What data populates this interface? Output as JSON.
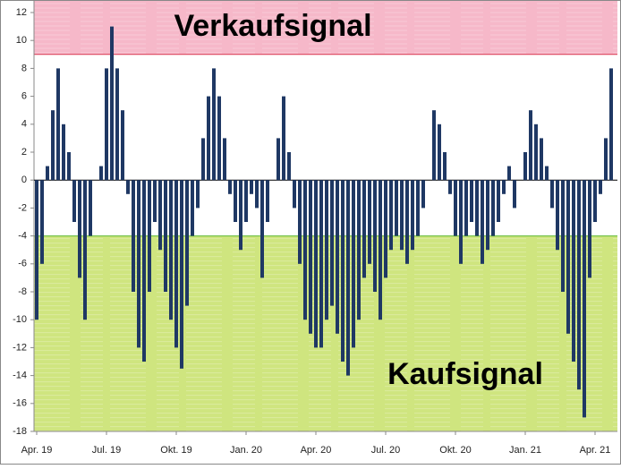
{
  "chart_data": {
    "type": "bar",
    "categories": [
      "Apr. 19",
      null,
      null,
      null,
      null,
      null,
      null,
      null,
      null,
      null,
      null,
      null,
      null,
      "Jul. 19",
      null,
      null,
      null,
      null,
      null,
      null,
      null,
      null,
      null,
      null,
      null,
      null,
      "Okt. 19",
      null,
      null,
      null,
      null,
      null,
      null,
      null,
      null,
      null,
      null,
      null,
      null,
      "Jan. 20",
      null,
      null,
      null,
      null,
      null,
      null,
      null,
      null,
      null,
      null,
      null,
      null,
      "Apr. 20",
      null,
      null,
      null,
      null,
      null,
      null,
      null,
      null,
      null,
      null,
      null,
      null,
      "Jul. 20",
      null,
      null,
      null,
      null,
      null,
      null,
      null,
      null,
      null,
      null,
      null,
      null,
      "Okt. 20",
      null,
      null,
      null,
      null,
      null,
      null,
      null,
      null,
      null,
      null,
      null,
      null,
      "Jan. 21",
      null,
      null,
      null,
      null,
      null,
      null,
      null,
      null,
      null,
      null,
      null,
      null,
      "Apr. 21",
      null,
      null,
      null
    ],
    "values": [
      -10,
      -6,
      1,
      5,
      8,
      4,
      2,
      -3,
      -7,
      -10,
      -4,
      0,
      1,
      8,
      11,
      8,
      5,
      -1,
      -8,
      -12,
      -13,
      -8,
      -3,
      -5,
      -8,
      -10,
      -12,
      -13.5,
      -9,
      -4,
      -2,
      3,
      6,
      8,
      6,
      3,
      -1,
      -3,
      -5,
      -3,
      -1,
      -2,
      -7,
      -3,
      0,
      3,
      6,
      2,
      -2,
      -6,
      -10,
      -11,
      -12,
      -12,
      -10,
      -9,
      -11,
      -13,
      -14,
      -12,
      -10,
      -7,
      -6,
      -8,
      -10,
      -7,
      -5,
      -4,
      -5,
      -6,
      -5,
      -4,
      -2,
      0,
      5,
      4,
      2,
      -1,
      -4,
      -6,
      -4,
      -3,
      -4,
      -6,
      -5,
      -4,
      -3,
      -1,
      1,
      -2,
      0,
      2,
      5,
      4,
      3,
      1,
      -2,
      -5,
      -8,
      -11,
      -13,
      -15,
      -17,
      -7,
      -3,
      -1,
      3,
      8
    ],
    "color": "#1f3864",
    "ylim": [
      -18,
      12
    ],
    "yticks": [
      -18,
      -16,
      -14,
      -12,
      -10,
      -8,
      -6,
      -4,
      -2,
      0,
      2,
      4,
      6,
      8,
      10,
      12
    ],
    "zones": [
      {
        "label": "Verkaufsignal",
        "from": 9,
        "to": 12,
        "color": "#f6b8c9",
        "edge": "#d9334f"
      },
      {
        "label": "Kaufsignal",
        "from": -18,
        "to": -4,
        "color": "#cfe57f",
        "edge": "#5cb82e"
      }
    ]
  }
}
